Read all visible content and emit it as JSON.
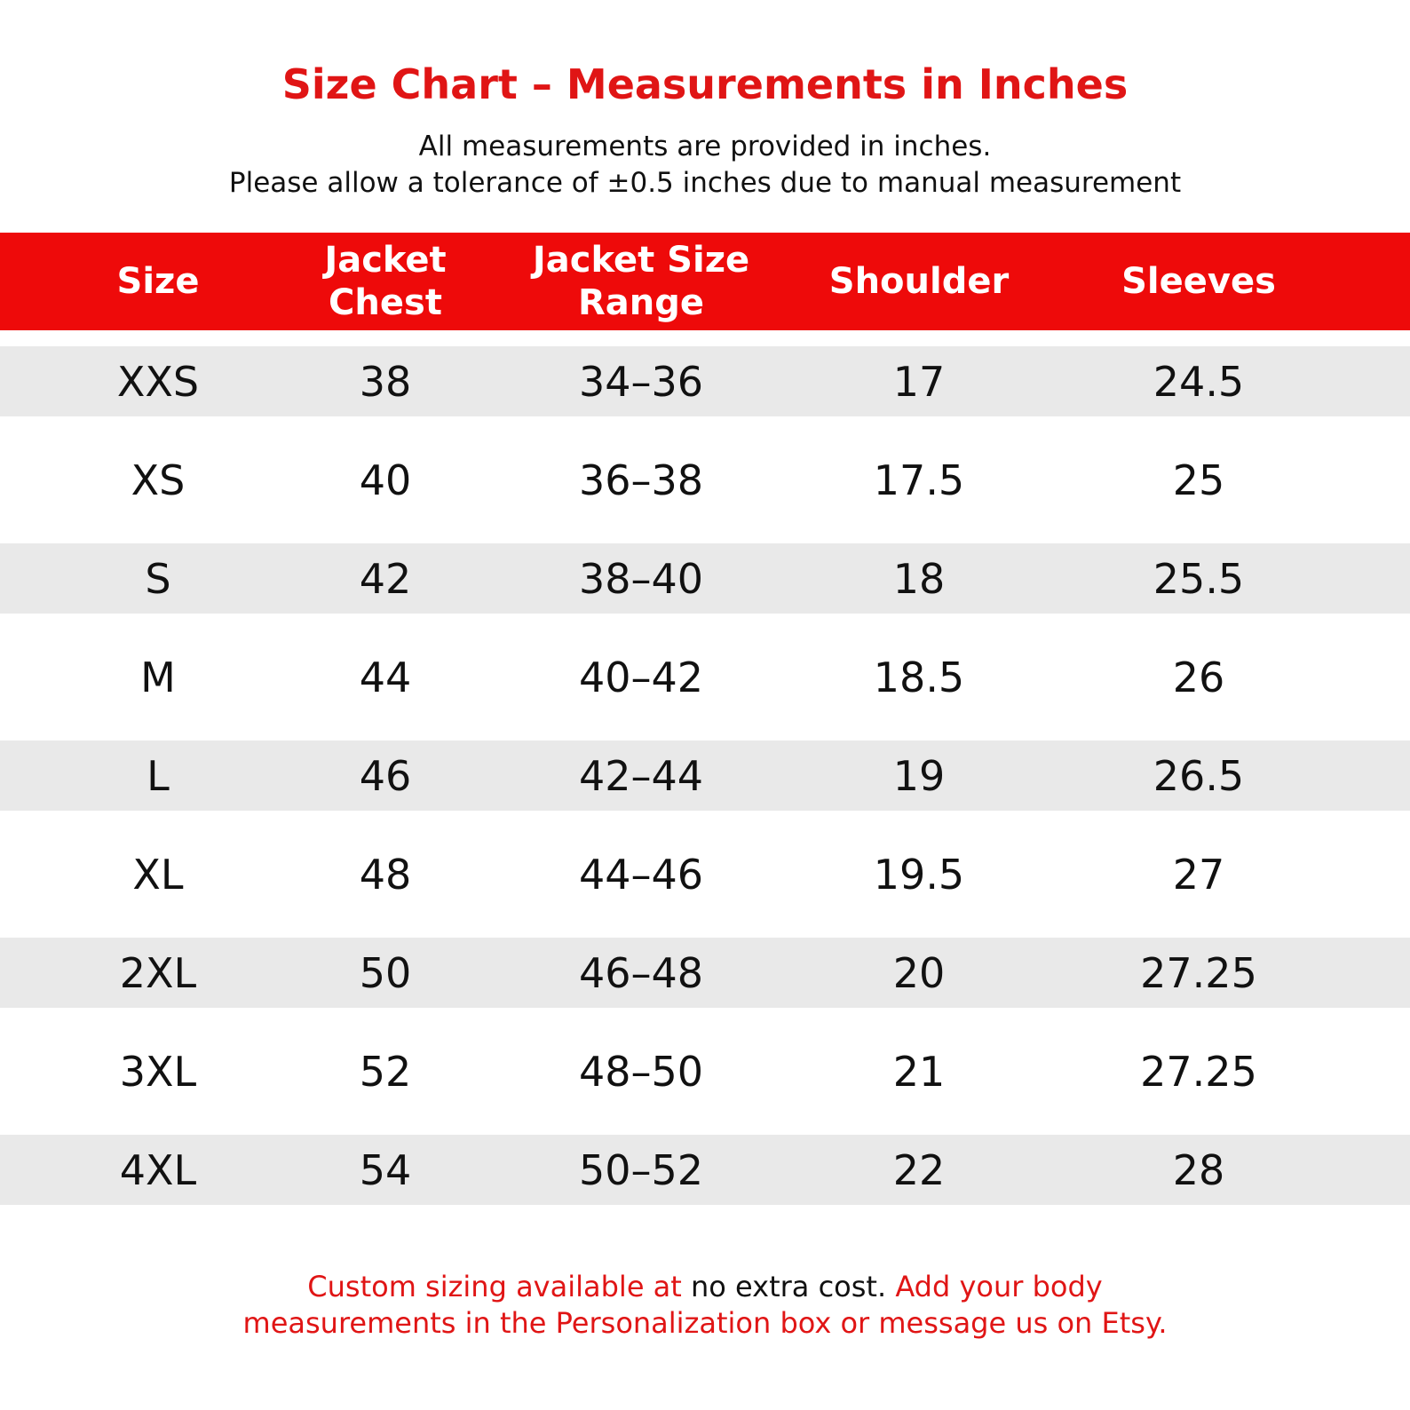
{
  "header": {
    "title": "Size Chart – Measurements in Inches",
    "subtitle_lines": [
      "All measurements are provided in inches.",
      "Please allow a tolerance of ±0.5 inches due to manual measurement"
    ]
  },
  "table": {
    "columns": [
      [
        "Size"
      ],
      [
        "Jacket",
        "Chest"
      ],
      [
        "Jacket Size",
        "Range"
      ],
      [
        "Shoulder"
      ],
      [
        "Sleeves"
      ]
    ],
    "rows": [
      [
        "XXS",
        "38",
        "34–36",
        "17",
        "24.5"
      ],
      [
        "XS",
        "40",
        "36–38",
        "17.5",
        "25"
      ],
      [
        "S",
        "42",
        "38–40",
        "18",
        "25.5"
      ],
      [
        "M",
        "44",
        "40–42",
        "18.5",
        "26"
      ],
      [
        "L",
        "46",
        "42–44",
        "19",
        "26.5"
      ],
      [
        "XL",
        "48",
        "44–46",
        "19.5",
        "27"
      ],
      [
        "2XL",
        "50",
        "46–48",
        "20",
        "27.25"
      ],
      [
        "3XL",
        "52",
        "48–50",
        "21",
        "27.25"
      ],
      [
        "4XL",
        "54",
        "50–52",
        "22",
        "28"
      ]
    ]
  },
  "footer": {
    "lines": [
      [
        {
          "text": "Custom sizing available at ",
          "color": "#e01515"
        },
        {
          "text": "no extra cost.",
          "color": "#111111"
        },
        {
          "text": " Add your body",
          "color": "#e01515"
        }
      ],
      [
        {
          "text": "measurements in the Personalization box or message us on Etsy.",
          "color": "#e01515"
        }
      ]
    ]
  }
}
